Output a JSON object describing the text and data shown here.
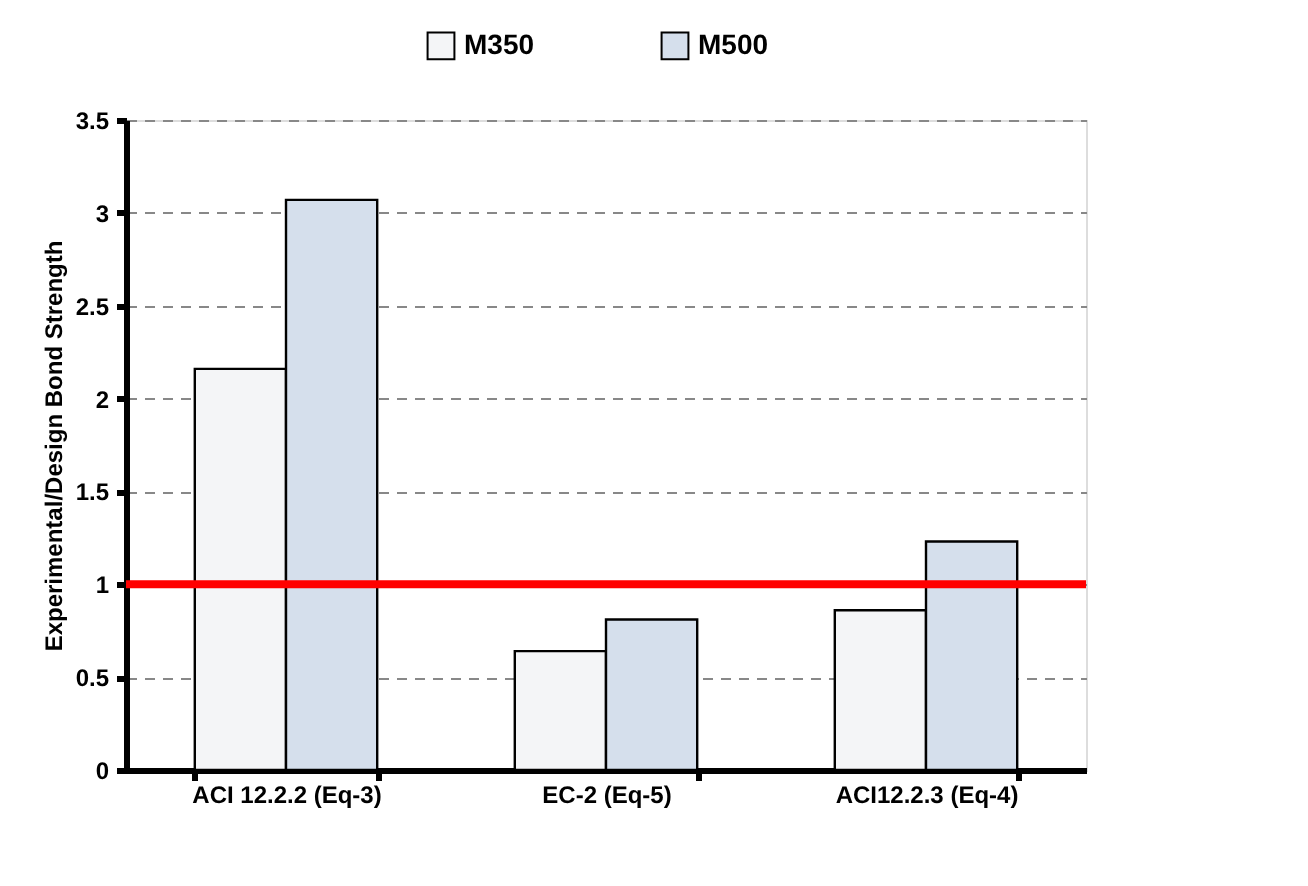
{
  "chart_data": {
    "type": "bar",
    "ylabel": "Experimental/Design Bond Strength",
    "categories": [
      "ACI 12.2.2 (Eq-3)",
      "EC-2 (Eq-5)",
      "ACI12.2.3 (Eq-4)"
    ],
    "series": [
      {
        "name": "M350",
        "color": "#f4f5f7",
        "values": [
          2.16,
          0.64,
          0.86
        ]
      },
      {
        "name": "M500",
        "color": "#d5dfec",
        "values": [
          3.07,
          0.81,
          1.23
        ]
      }
    ],
    "ylim": [
      0,
      3.5
    ],
    "yticks": [
      0,
      0.5,
      1,
      1.5,
      2,
      2.5,
      3,
      3.5
    ],
    "grid": "y",
    "legend": "top",
    "ref_lines": [
      {
        "axis": "y",
        "value": 1,
        "color": "#ff0000"
      }
    ]
  }
}
